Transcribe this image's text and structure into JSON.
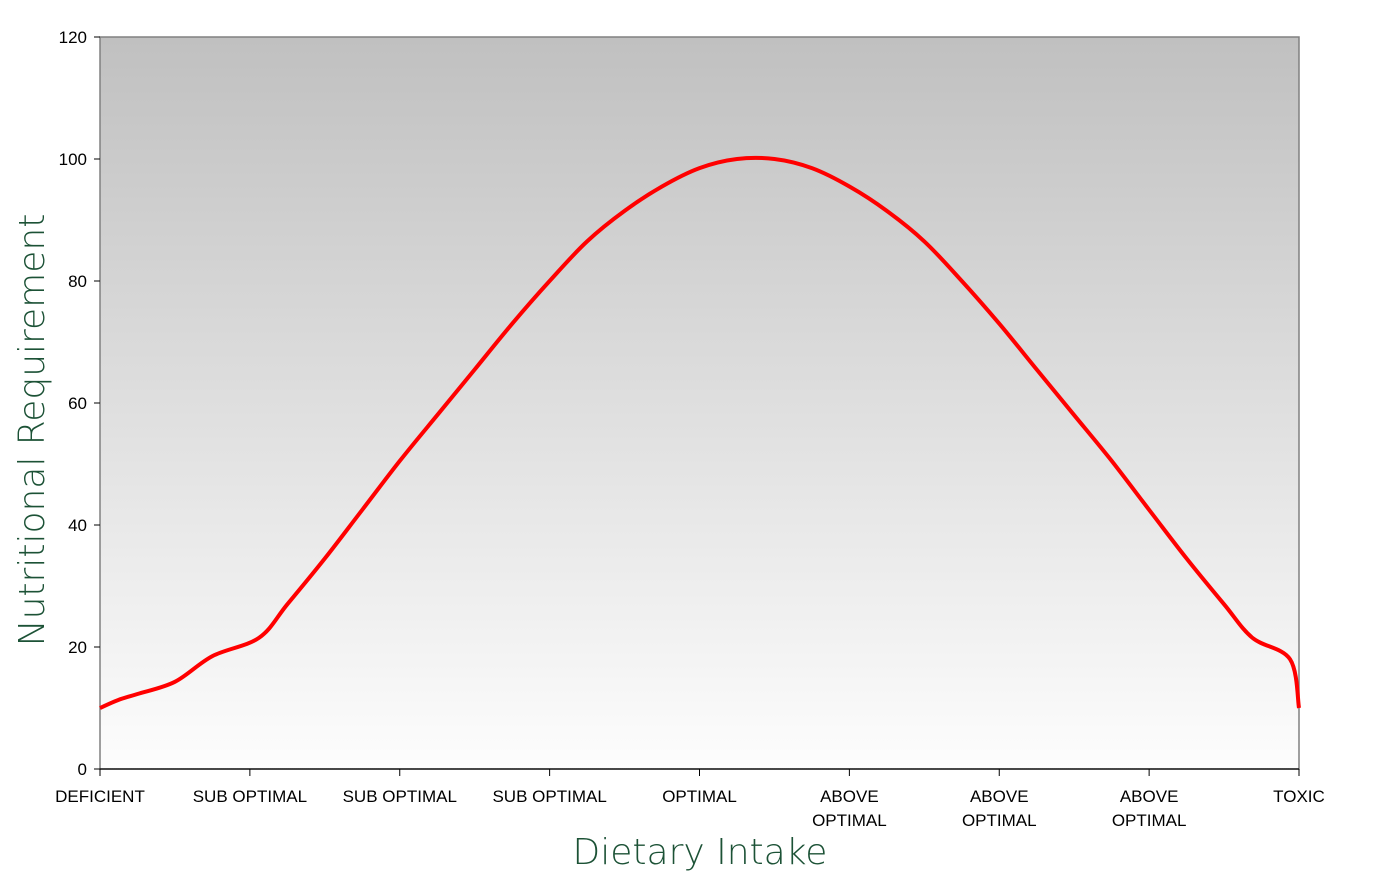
{
  "chart_data": {
    "type": "line",
    "xlabel": "Dietary Intake",
    "ylabel": "Nutritional Requirement",
    "ylim": [
      0,
      120
    ],
    "yticks": [
      0,
      20,
      40,
      60,
      80,
      100,
      120
    ],
    "xlim": [
      0,
      8
    ],
    "categories": [
      [
        "DEFICIENT"
      ],
      [
        "SUB OPTIMAL"
      ],
      [
        "SUB OPTIMAL"
      ],
      [
        "SUB OPTIMAL"
      ],
      [
        "OPTIMAL"
      ],
      [
        "ABOVE",
        "OPTIMAL"
      ],
      [
        "ABOVE",
        "OPTIMAL"
      ],
      [
        "ABOVE",
        "OPTIMAL"
      ],
      [
        "TOXIC"
      ]
    ],
    "grid": false,
    "series": [
      {
        "color": "#ff0000",
        "points": [
          [
            0.0,
            10.0
          ],
          [
            0.12,
            11.3
          ],
          [
            0.25,
            12.3
          ],
          [
            0.5,
            14.3
          ],
          [
            0.75,
            18.5
          ],
          [
            1.06,
            21.5
          ],
          [
            1.25,
            27.0
          ],
          [
            1.5,
            34.5
          ],
          [
            1.75,
            42.5
          ],
          [
            2.0,
            50.5
          ],
          [
            2.25,
            58.0
          ],
          [
            2.5,
            65.5
          ],
          [
            2.75,
            73.0
          ],
          [
            3.0,
            80.0
          ],
          [
            3.25,
            86.5
          ],
          [
            3.5,
            91.5
          ],
          [
            3.75,
            95.5
          ],
          [
            4.0,
            98.5
          ],
          [
            4.25,
            100.0
          ],
          [
            4.5,
            100.0
          ],
          [
            4.75,
            98.5
          ],
          [
            5.0,
            95.5
          ],
          [
            5.25,
            91.5
          ],
          [
            5.5,
            86.5
          ],
          [
            5.75,
            80.0
          ],
          [
            6.0,
            73.0
          ],
          [
            6.25,
            65.5
          ],
          [
            6.5,
            58.0
          ],
          [
            6.75,
            50.5
          ],
          [
            7.0,
            42.5
          ],
          [
            7.25,
            34.5
          ],
          [
            7.5,
            27.0
          ],
          [
            7.69,
            21.5
          ],
          [
            7.94,
            18.0
          ],
          [
            8.0,
            10.0
          ]
        ]
      }
    ],
    "colors": {
      "plot_gradient_top": "#c0c0c0",
      "plot_gradient_bottom": "#fdfdfd",
      "axis_title": "#1c5236",
      "axis_line": "#808080"
    }
  }
}
